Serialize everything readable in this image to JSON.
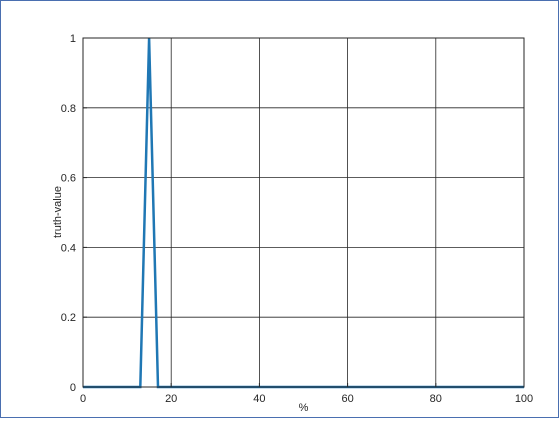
{
  "chart_data": {
    "type": "line",
    "title": "",
    "xlabel": "%",
    "ylabel": "truth-value",
    "xlim": [
      0,
      100
    ],
    "ylim": [
      0,
      1
    ],
    "xticks": [
      0,
      20,
      40,
      60,
      80,
      100
    ],
    "xtick_labels": [
      "0",
      "20",
      "40",
      "60",
      "80",
      "100"
    ],
    "yticks": [
      0,
      0.2,
      0.4,
      0.6,
      0.8,
      1
    ],
    "ytick_labels": [
      "0",
      "0.2",
      "0.4",
      "0.6",
      "0.8",
      "1"
    ],
    "grid": true,
    "legend": false,
    "series": [
      {
        "x": [
          0,
          13,
          15,
          17,
          100
        ],
        "y": [
          0,
          0,
          1,
          0,
          0
        ],
        "color": "#1f77b4"
      }
    ]
  }
}
